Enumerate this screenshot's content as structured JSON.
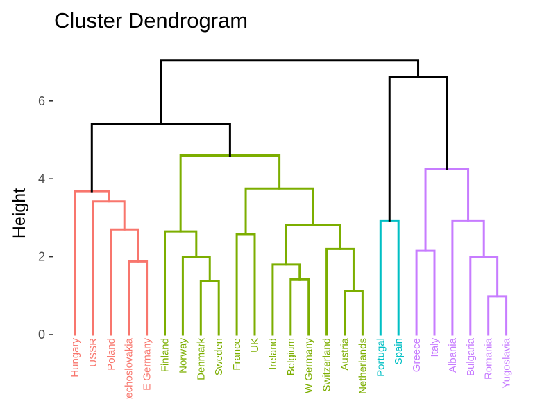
{
  "chart_data": {
    "type": "dendrogram",
    "title": "Cluster Dendrogram",
    "xlabel": "",
    "ylabel": "Height",
    "ylim": [
      0,
      7.3
    ],
    "yticks": [
      0,
      2,
      4,
      6
    ],
    "grid": false,
    "legend": "none",
    "colors": {
      "root": "#000000",
      "cluster1": "#F8766D",
      "cluster2": "#7CAE00",
      "cluster3": "#00BFC4",
      "cluster4": "#C77CFF"
    },
    "leaves": [
      {
        "label": "Hungary",
        "cluster": "cluster1"
      },
      {
        "label": "USSR",
        "cluster": "cluster1"
      },
      {
        "label": "Poland",
        "cluster": "cluster1"
      },
      {
        "label": "Czechoslovakia",
        "cluster": "cluster1"
      },
      {
        "label": "E Germany",
        "cluster": "cluster1"
      },
      {
        "label": "Finland",
        "cluster": "cluster2"
      },
      {
        "label": "Norway",
        "cluster": "cluster2"
      },
      {
        "label": "Denmark",
        "cluster": "cluster2"
      },
      {
        "label": "Sweden",
        "cluster": "cluster2"
      },
      {
        "label": "France",
        "cluster": "cluster2"
      },
      {
        "label": "UK",
        "cluster": "cluster2"
      },
      {
        "label": "Ireland",
        "cluster": "cluster2"
      },
      {
        "label": "Belgium",
        "cluster": "cluster2"
      },
      {
        "label": "W Germany",
        "cluster": "cluster2"
      },
      {
        "label": "Switzerland",
        "cluster": "cluster2"
      },
      {
        "label": "Austria",
        "cluster": "cluster2"
      },
      {
        "label": "Netherlands",
        "cluster": "cluster2"
      },
      {
        "label": "Portugal",
        "cluster": "cluster3"
      },
      {
        "label": "Spain",
        "cluster": "cluster3"
      },
      {
        "label": "Greece",
        "cluster": "cluster4"
      },
      {
        "label": "Italy",
        "cluster": "cluster4"
      },
      {
        "label": "Albania",
        "cluster": "cluster4"
      },
      {
        "label": "Bulgaria",
        "cluster": "cluster4"
      },
      {
        "label": "Romania",
        "cluster": "cluster4"
      },
      {
        "label": "Yugoslavia",
        "cluster": "cluster4"
      }
    ],
    "merges": [
      {
        "left": "L7",
        "right": "L8",
        "height": 1.38,
        "cluster": "cluster2"
      },
      {
        "left": "L12",
        "right": "L13",
        "height": 1.42,
        "cluster": "cluster2"
      },
      {
        "left": "L15",
        "right": "L16",
        "height": 1.12,
        "cluster": "cluster2"
      },
      {
        "left": "L23",
        "right": "L24",
        "height": 0.98,
        "cluster": "cluster4"
      },
      {
        "left": "L3",
        "right": "L4",
        "height": 1.88,
        "cluster": "cluster1"
      },
      {
        "left": "L11",
        "right": "M1",
        "height": 1.8,
        "cluster": "cluster2"
      },
      {
        "left": "L6",
        "right": "M0",
        "height": 2.0,
        "cluster": "cluster2"
      },
      {
        "left": "L22",
        "right": "M3",
        "height": 2.0,
        "cluster": "cluster4"
      },
      {
        "left": "L19",
        "right": "L20",
        "height": 2.15,
        "cluster": "cluster4"
      },
      {
        "left": "L14",
        "right": "M2",
        "height": 2.2,
        "cluster": "cluster2"
      },
      {
        "left": "L9",
        "right": "L10",
        "height": 2.58,
        "cluster": "cluster2"
      },
      {
        "left": "L5",
        "right": "M6",
        "height": 2.65,
        "cluster": "cluster2"
      },
      {
        "left": "L2",
        "right": "M4",
        "height": 2.7,
        "cluster": "cluster1"
      },
      {
        "left": "M5",
        "right": "M9",
        "height": 2.82,
        "cluster": "cluster2"
      },
      {
        "left": "L17",
        "right": "L18",
        "height": 2.93,
        "cluster": "cluster3"
      },
      {
        "left": "L21",
        "right": "M7",
        "height": 2.93,
        "cluster": "cluster4"
      },
      {
        "left": "L1",
        "right": "M12",
        "height": 3.42,
        "cluster": "cluster1"
      },
      {
        "left": "L0",
        "right": "M16",
        "height": 3.68,
        "cluster": "cluster1"
      },
      {
        "left": "M10",
        "right": "M13",
        "height": 3.75,
        "cluster": "cluster2"
      },
      {
        "left": "M8",
        "right": "M15",
        "height": 4.25,
        "cluster": "cluster4"
      },
      {
        "left": "M11",
        "right": "M18",
        "height": 4.6,
        "cluster": "cluster2"
      },
      {
        "left": "M17",
        "right": "M20",
        "height": 5.4,
        "cluster": "root"
      },
      {
        "left": "M14",
        "right": "M19",
        "height": 6.62,
        "cluster": "root"
      },
      {
        "left": "M21",
        "right": "M22",
        "height": 7.05,
        "cluster": "root"
      }
    ]
  }
}
